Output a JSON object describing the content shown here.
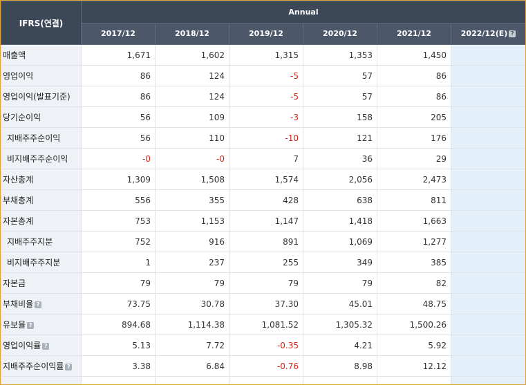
{
  "header": {
    "ifrs": "IFRS(연결)",
    "period_group": "Annual",
    "years": [
      "2017/12",
      "2018/12",
      "2019/12",
      "2020/12",
      "2021/12"
    ],
    "estimate": "2022/12(E)",
    "help_glyph": "?"
  },
  "rows": [
    {
      "label": "매출액",
      "sub": false,
      "help": false,
      "values": [
        "1,671",
        "1,602",
        "1,315",
        "1,353",
        "1,450"
      ],
      "negative": [
        false,
        false,
        false,
        false,
        false
      ],
      "estimate": ""
    },
    {
      "label": "영업이익",
      "sub": false,
      "help": false,
      "values": [
        "86",
        "124",
        "-5",
        "57",
        "86"
      ],
      "negative": [
        false,
        false,
        true,
        false,
        false
      ],
      "estimate": ""
    },
    {
      "label": "영업이익(발표기준)",
      "sub": false,
      "help": false,
      "values": [
        "86",
        "124",
        "-5",
        "57",
        "86"
      ],
      "negative": [
        false,
        false,
        true,
        false,
        false
      ],
      "estimate": ""
    },
    {
      "label": "당기순이익",
      "sub": false,
      "help": false,
      "values": [
        "56",
        "109",
        "-3",
        "158",
        "205"
      ],
      "negative": [
        false,
        false,
        true,
        false,
        false
      ],
      "estimate": ""
    },
    {
      "label": "지배주주순이익",
      "sub": true,
      "help": false,
      "values": [
        "56",
        "110",
        "-10",
        "121",
        "176"
      ],
      "negative": [
        false,
        false,
        true,
        false,
        false
      ],
      "estimate": ""
    },
    {
      "label": "비지배주주순이익",
      "sub": true,
      "help": false,
      "values": [
        "-0",
        "-0",
        "7",
        "36",
        "29"
      ],
      "negative": [
        true,
        true,
        false,
        false,
        false
      ],
      "estimate": ""
    },
    {
      "label": "자산총계",
      "sub": false,
      "help": false,
      "values": [
        "1,309",
        "1,508",
        "1,574",
        "2,056",
        "2,473"
      ],
      "negative": [
        false,
        false,
        false,
        false,
        false
      ],
      "estimate": ""
    },
    {
      "label": "부채총계",
      "sub": false,
      "help": false,
      "values": [
        "556",
        "355",
        "428",
        "638",
        "811"
      ],
      "negative": [
        false,
        false,
        false,
        false,
        false
      ],
      "estimate": ""
    },
    {
      "label": "자본총계",
      "sub": false,
      "help": false,
      "values": [
        "753",
        "1,153",
        "1,147",
        "1,418",
        "1,663"
      ],
      "negative": [
        false,
        false,
        false,
        false,
        false
      ],
      "estimate": ""
    },
    {
      "label": "지배주주지분",
      "sub": true,
      "help": false,
      "values": [
        "752",
        "916",
        "891",
        "1,069",
        "1,277"
      ],
      "negative": [
        false,
        false,
        false,
        false,
        false
      ],
      "estimate": ""
    },
    {
      "label": "비지배주주지분",
      "sub": true,
      "help": false,
      "values": [
        "1",
        "237",
        "255",
        "349",
        "385"
      ],
      "negative": [
        false,
        false,
        false,
        false,
        false
      ],
      "estimate": ""
    },
    {
      "label": "자본금",
      "sub": false,
      "help": false,
      "values": [
        "79",
        "79",
        "79",
        "79",
        "82"
      ],
      "negative": [
        false,
        false,
        false,
        false,
        false
      ],
      "estimate": ""
    },
    {
      "label": "부채비율",
      "sub": false,
      "help": true,
      "values": [
        "73.75",
        "30.78",
        "37.30",
        "45.01",
        "48.75"
      ],
      "negative": [
        false,
        false,
        false,
        false,
        false
      ],
      "estimate": ""
    },
    {
      "label": "유보율",
      "sub": false,
      "help": true,
      "values": [
        "894.68",
        "1,114.38",
        "1,081.52",
        "1,305.32",
        "1,500.26"
      ],
      "negative": [
        false,
        false,
        false,
        false,
        false
      ],
      "estimate": ""
    },
    {
      "label": "영업이익률",
      "sub": false,
      "help": true,
      "values": [
        "5.13",
        "7.72",
        "-0.35",
        "4.21",
        "5.92"
      ],
      "negative": [
        false,
        false,
        true,
        false,
        false
      ],
      "estimate": ""
    },
    {
      "label": "지배주주순이익률",
      "sub": false,
      "help": true,
      "values": [
        "3.38",
        "6.84",
        "-0.76",
        "8.98",
        "12.12"
      ],
      "negative": [
        false,
        false,
        true,
        false,
        false
      ],
      "estimate": ""
    },
    {
      "label": "",
      "sub": false,
      "help": true,
      "values": [
        "",
        "",
        "",
        "",
        ""
      ],
      "negative": [
        false,
        false,
        false,
        false,
        false
      ],
      "estimate": ""
    }
  ]
}
